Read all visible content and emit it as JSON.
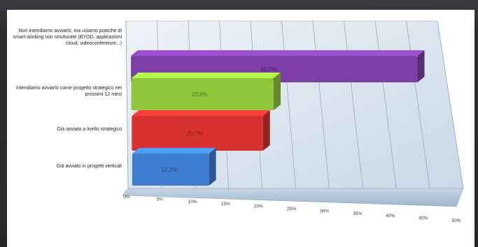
{
  "chart_data": {
    "type": "bar",
    "orientation": "horizontal",
    "style": "3d",
    "categories": [
      "Non intendiamo avviarlo, ma usiamo pratiche di smart working non strutturate (BYOD, applicazioni cloud, videoconferenze...)",
      "Intendiamo avviarlo come progetto strategico nei prossimi 12 mesi",
      "Già avviato a livello strategico",
      "Già avviato in progetti verticali"
    ],
    "values": [
      45.7,
      22.8,
      20.7,
      12.2
    ],
    "value_labels": [
      "45,7%",
      "22,8%",
      "20,7%",
      "12,2%"
    ],
    "bar_colors": [
      "#7d3fa6",
      "#8fc63a",
      "#d8322f",
      "#3e7ed0"
    ],
    "xlim": [
      0,
      50
    ],
    "xticks": [
      "0%",
      "5%",
      "10%",
      "15%",
      "20%",
      "25%",
      "30%",
      "35%",
      "40%",
      "45%",
      "50%"
    ],
    "grid": true,
    "legend": "none",
    "title": "",
    "xlabel": "",
    "ylabel": ""
  }
}
